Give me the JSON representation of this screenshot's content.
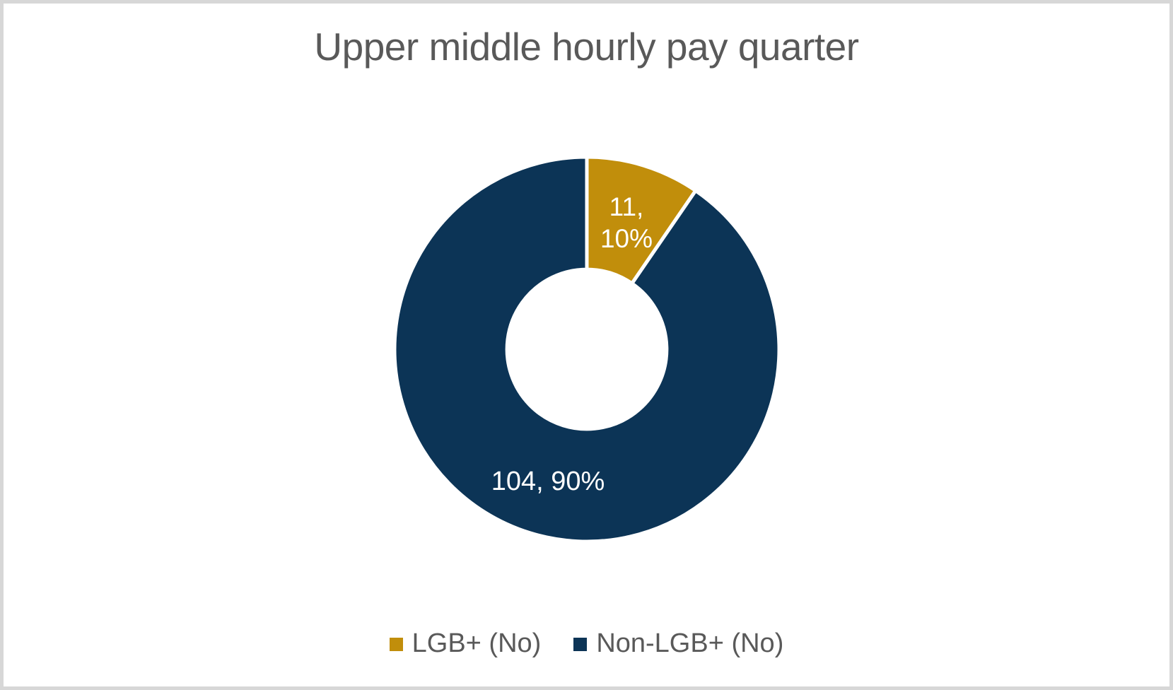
{
  "chart_data": {
    "type": "pie",
    "subtype": "donut",
    "title": "Upper middle hourly pay quarter",
    "categories": [
      "LGB+ (No)",
      "Non-LGB+ (No)"
    ],
    "values": [
      11,
      104
    ],
    "percentages": [
      10,
      90
    ],
    "colors": [
      "#C18E0B",
      "#0C3456"
    ],
    "start_angle_deg": 0,
    "inner_radius_ratio": 0.415,
    "grid": false,
    "legend_position": "bottom",
    "data_labels": [
      {
        "line1": "11,",
        "line2": "10%"
      },
      {
        "text": "104, 90%"
      }
    ],
    "legend": {
      "items": [
        {
          "label": "LGB+ (No)"
        },
        {
          "label": "Non-LGB+ (No)"
        }
      ]
    },
    "title_color": "#595959",
    "label_text_color": "#ffffff",
    "slice_border_color": "#ffffff"
  }
}
